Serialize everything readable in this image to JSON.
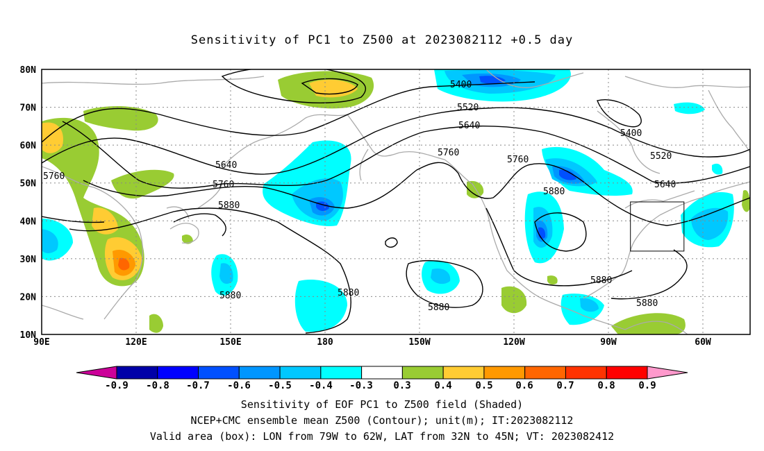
{
  "title": "Sensitivity of PC1 to Z500 at 2023082112 +0.5 day",
  "map": {
    "lat_labels": [
      "80N",
      "70N",
      "60N",
      "50N",
      "40N",
      "30N",
      "20N",
      "10N"
    ],
    "lon_labels": [
      "90E",
      "120E",
      "150E",
      "180",
      "150W",
      "120W",
      "90W",
      "60W"
    ],
    "contour_labels": [
      "5400",
      "5520",
      "5640",
      "5760",
      "5880",
      "5400",
      "5520",
      "5640",
      "5760",
      "5880",
      "5640",
      "5760",
      "5880",
      "5760",
      "5880",
      "5880",
      "5880",
      "5880"
    ],
    "valid_box": {
      "lon_west": -79,
      "lon_east": -62,
      "lat_south": 32,
      "lat_north": 45
    }
  },
  "colorbar": {
    "labels": [
      "-0.9",
      "-0.8",
      "-0.7",
      "-0.6",
      "-0.5",
      "-0.4",
      "-0.3",
      "0.3",
      "0.4",
      "0.5",
      "0.6",
      "0.7",
      "0.8",
      "0.9"
    ],
    "colors": [
      "#0000a8",
      "#0000ff",
      "#0050ff",
      "#0096ff",
      "#00c8ff",
      "#00ffff",
      "#ffffff",
      "#99cc33",
      "#ffcc33",
      "#ff9900",
      "#ff6600",
      "#ff3300",
      "#ff0000"
    ],
    "low_end_color": "#cc0099",
    "high_end_color": "#ff99cc"
  },
  "footer": {
    "line1": "Sensitivity of EOF PC1 to Z500 field (Shaded)",
    "line2": "NCEP+CMC ensemble mean Z500 (Contour); unit(m); IT:2023082112",
    "line3": "Valid area (box): LON from 79W to 62W, LAT from 32N to 45N; VT: 2023082412"
  }
}
